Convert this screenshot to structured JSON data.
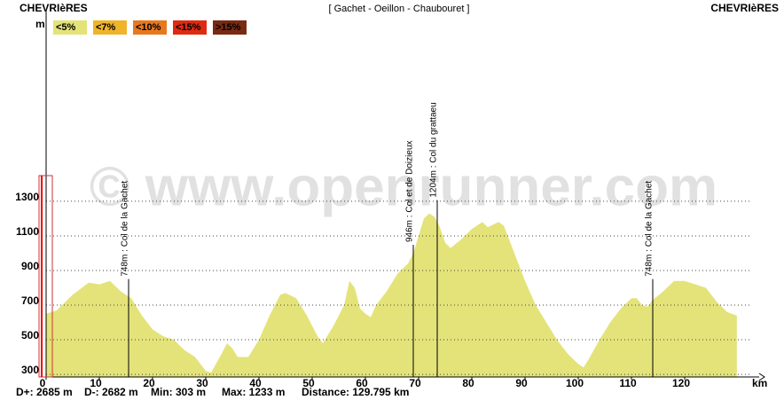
{
  "chart_data": {
    "type": "area",
    "title": "[ Gachet - Oeillon - Chaubouret ]",
    "start_label": "CHEVRIèRES",
    "end_label": "CHEVRIèRES",
    "y_label": "m",
    "x_label": "km",
    "watermark": "© www.openrunner.com",
    "color": "#e3e37a",
    "legend": [
      {
        "name": "<5%",
        "color": "#e3e37a"
      },
      {
        "name": "<7%",
        "color": "#f0b42a"
      },
      {
        "name": "<10%",
        "color": "#e8781e"
      },
      {
        "name": "<15%",
        "color": "#e02a10"
      },
      {
        "name": ">15%",
        "color": "#7a2a12"
      }
    ],
    "x": [
      0,
      2,
      5,
      8,
      10,
      12,
      14,
      16,
      18,
      20,
      22,
      24,
      26,
      28,
      30,
      31,
      33,
      34,
      35,
      36,
      38,
      40,
      42,
      44,
      45,
      47,
      49,
      51,
      52,
      54,
      56,
      57,
      58,
      59,
      60,
      61,
      62,
      64,
      66,
      68,
      69,
      70,
      71,
      72,
      73,
      74,
      75,
      76,
      78,
      80,
      82,
      83,
      85,
      86,
      88,
      90,
      92,
      94,
      96,
      98,
      100,
      101,
      102,
      104,
      106,
      108,
      110,
      111,
      112,
      113,
      114,
      116,
      118,
      120,
      122,
      124,
      126,
      128,
      129.8
    ],
    "y": [
      650,
      670,
      760,
      830,
      820,
      840,
      780,
      740,
      640,
      560,
      520,
      500,
      440,
      400,
      320,
      310,
      420,
      480,
      450,
      400,
      400,
      500,
      640,
      760,
      770,
      740,
      640,
      520,
      480,
      580,
      700,
      840,
      800,
      680,
      650,
      630,
      700,
      780,
      880,
      940,
      1000,
      1100,
      1200,
      1230,
      1210,
      1150,
      1060,
      1030,
      1080,
      1140,
      1180,
      1150,
      1180,
      1160,
      1000,
      840,
      700,
      600,
      500,
      420,
      360,
      340,
      390,
      500,
      600,
      680,
      740,
      740,
      700,
      690,
      730,
      780,
      840,
      840,
      820,
      800,
      720,
      660,
      640
    ],
    "annotations": [
      {
        "x": 15.5,
        "y": 748,
        "label": "748m : Col de la Gachet"
      },
      {
        "x": 69,
        "y": 946,
        "label": "946m : Col et de Doizieux"
      },
      {
        "x": 73.5,
        "y": 1204,
        "label": "1204m : Col du grattaeu"
      },
      {
        "x": 114,
        "y": 748,
        "label": "748m : Col de la Gachet"
      }
    ],
    "xlim": [
      0,
      134
    ],
    "ylim": [
      285,
      2350
    ],
    "xticks": [
      0,
      10,
      20,
      30,
      40,
      50,
      60,
      70,
      80,
      90,
      100,
      110,
      120
    ],
    "yticks": [
      300,
      500,
      700,
      900,
      1100,
      1300
    ],
    "grid": true,
    "stats": [
      "D+: 2685 m",
      "D-: 2682 m",
      "Min: 303 m",
      "Max: 1233 m",
      "Distance: 129.795 km"
    ]
  }
}
